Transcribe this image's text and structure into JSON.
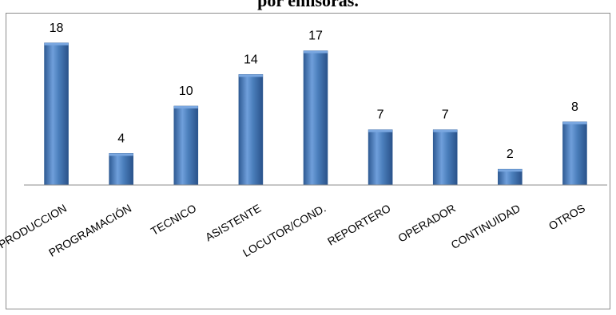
{
  "chart_data": {
    "type": "bar",
    "title": "por emisoras.",
    "categories": [
      "PRODUCCION",
      "PROGRAMACIÓN",
      "TECNICO",
      "ASISTENTE",
      "LOCUTOR/COND.",
      "REPORTERO",
      "OPERADOR",
      "CONTINUIDAD",
      "OTROS"
    ],
    "values": [
      18,
      4,
      10,
      14,
      17,
      7,
      7,
      2,
      8
    ],
    "data_labels": [
      "18",
      "4",
      "10",
      "14",
      "17",
      "7",
      "7",
      "2",
      "8"
    ],
    "ylim": [
      0,
      20
    ],
    "grid": false,
    "legend": "none",
    "colors": {
      "bar_main": "#4a7ebb",
      "bar_light": "#7aa7e0",
      "bar_dark": "#2f5b94",
      "axis": "#8c8c8c",
      "text": "#000000"
    }
  }
}
